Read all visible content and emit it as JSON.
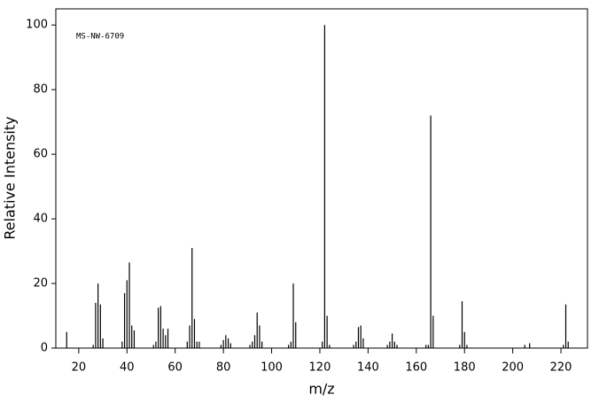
{
  "chart_data": {
    "type": "stem",
    "annotation": "MS-NW-6709",
    "x_label": "m/z",
    "y_label": "Relative Intensity",
    "color": "#000000",
    "x": [
      15,
      26,
      27,
      28,
      29,
      30,
      38,
      39,
      40,
      41,
      42,
      43,
      51,
      52,
      53,
      54,
      55,
      56,
      57,
      65,
      66,
      67,
      68,
      69,
      70,
      79,
      80,
      81,
      82,
      83,
      91,
      92,
      93,
      94,
      95,
      96,
      107,
      108,
      109,
      110,
      121,
      122,
      123,
      124,
      134,
      135,
      136,
      137,
      138,
      148,
      149,
      150,
      151,
      152,
      164,
      165,
      166,
      167,
      178,
      179,
      180,
      181,
      205,
      207,
      221,
      222,
      223
    ],
    "values": [
      5,
      1,
      14,
      20,
      13.5,
      3,
      2,
      17,
      21,
      26.5,
      7,
      5.5,
      1,
      2,
      12.5,
      13,
      6,
      4,
      6,
      2,
      7,
      31,
      9,
      2,
      2,
      1,
      2.5,
      4,
      3,
      1.5,
      1,
      2,
      4,
      11,
      7,
      2,
      1,
      2,
      20,
      8,
      2,
      100,
      10,
      1,
      1,
      2,
      6.5,
      7,
      3,
      1,
      2,
      4.5,
      2,
      1,
      1,
      1,
      72,
      10,
      1,
      14.5,
      5,
      1,
      1,
      1.5,
      1,
      13.5,
      2
    ],
    "xlim": [
      10.5,
      231
    ],
    "ylim": [
      0,
      105
    ],
    "xticks": [
      20,
      40,
      60,
      80,
      100,
      120,
      140,
      160,
      180,
      200,
      220
    ],
    "yticks": [
      0,
      20,
      40,
      60,
      80,
      100
    ]
  }
}
